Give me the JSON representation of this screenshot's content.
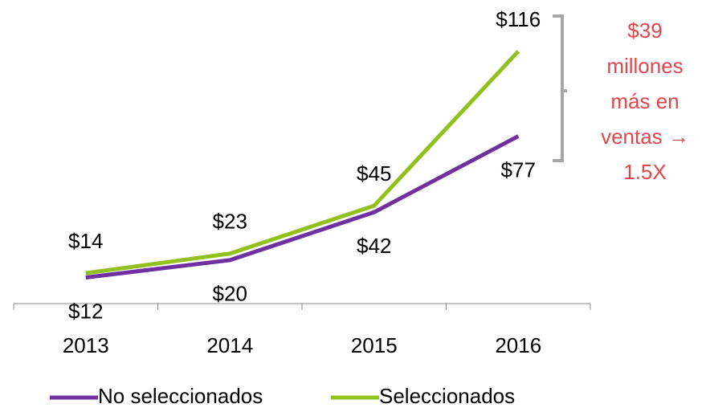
{
  "chart_data": {
    "type": "line",
    "categories": [
      "2013",
      "2014",
      "2015",
      "2016"
    ],
    "series": [
      {
        "name": "No seleccionados",
        "color": "#7030a0",
        "values": [
          12,
          20,
          42,
          77
        ],
        "value_labels": [
          "$12",
          "$20",
          "$42",
          "$77"
        ]
      },
      {
        "name": "Seleccionados",
        "color": "#92c01f",
        "values": [
          14,
          23,
          45,
          116
        ],
        "value_labels": [
          "$14",
          "$23",
          "$45",
          "$116"
        ]
      }
    ],
    "ylim": [
      0,
      130
    ],
    "annotation": [
      "$39",
      "millones",
      "más en",
      "ventas →",
      "1.5X"
    ]
  }
}
